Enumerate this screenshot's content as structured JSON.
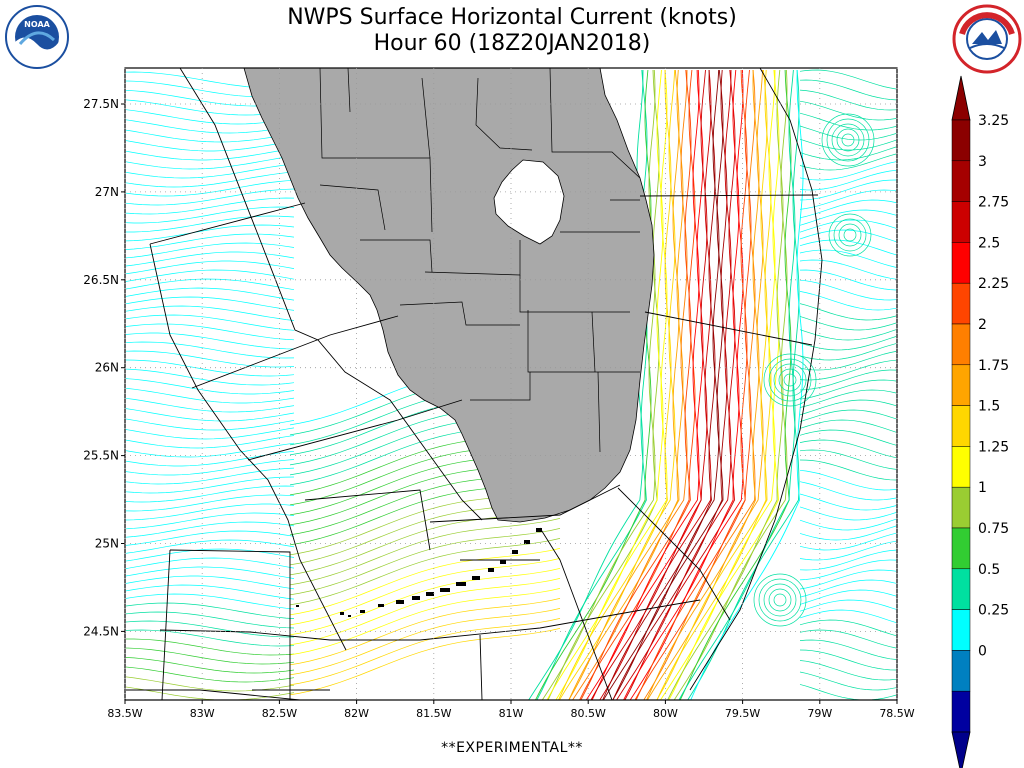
{
  "header": {
    "title_line1": "NWPS Surface Horizontal Current (knots)",
    "title_line2": "Hour 60 (18Z20JAN2018)"
  },
  "logos": {
    "left": {
      "name": "noaa-logo",
      "text": "NOAA",
      "color": "#1b4fa0"
    },
    "right": {
      "name": "national-weather-service-logo",
      "text": "NATIONAL WEATHER SERVICE",
      "color": "#d3242a"
    }
  },
  "map": {
    "lat_labels": [
      "27.5N",
      "27N",
      "26.5N",
      "26N",
      "25.5N",
      "25N",
      "24.5N"
    ],
    "lat_values": [
      27.5,
      27.0,
      26.5,
      26.0,
      25.5,
      25.0,
      24.5
    ],
    "lon_labels": [
      "83.5W",
      "83W",
      "82.5W",
      "82W",
      "81.5W",
      "81W",
      "80.5W",
      "80W",
      "79.5W",
      "79W",
      "78.5W"
    ],
    "lon_values": [
      -83.5,
      -83.0,
      -82.5,
      -82.0,
      -81.5,
      -81.0,
      -80.5,
      -80.0,
      -79.5,
      -79.0,
      -78.5
    ],
    "land_color": "#a9a9a9",
    "ocean_color": "#ffffff"
  },
  "colorbar": {
    "labels": [
      "3.25",
      "3",
      "2.75",
      "2.5",
      "2.25",
      "2",
      "1.75",
      "1.5",
      "1.25",
      "1",
      "0.75",
      "0.5",
      "0.25",
      "0"
    ],
    "colors": [
      "#8b0000",
      "#a50000",
      "#cc0000",
      "#ff0000",
      "#ff4500",
      "#ff7f00",
      "#ffa500",
      "#ffd700",
      "#ffff00",
      "#9acd32",
      "#32cd32",
      "#00e0a0",
      "#00ffff",
      "#0080c0",
      "#0000a0"
    ],
    "under_color": "#00008b",
    "over_color": "#8b0000"
  },
  "footer": {
    "text": "**EXPERIMENTAL**"
  }
}
